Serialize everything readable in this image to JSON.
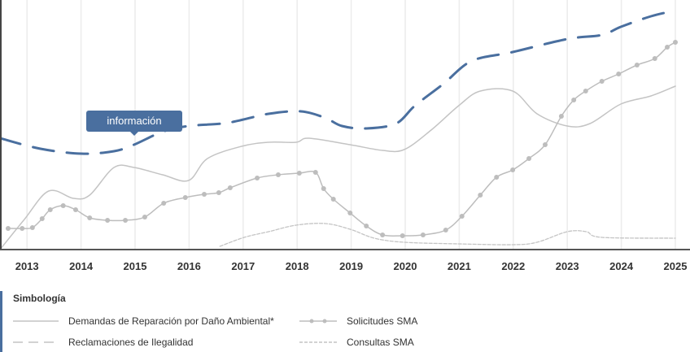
{
  "chart_data": {
    "type": "line",
    "title": "",
    "xlabel": "",
    "ylabel": "",
    "xlim": [
      2012.5,
      2025.25
    ],
    "ylim": [
      0,
      307
    ],
    "grid": "vertical",
    "x_ticks": [
      "2013",
      "2014",
      "2015",
      "2016",
      "2017",
      "2018",
      "2019",
      "2020",
      "2021",
      "2022",
      "2023",
      "2024",
      "2025"
    ],
    "annotation": "información",
    "legend_title": "Simbología",
    "series": [
      {
        "name": "Reclamaciones de Ilegalidad",
        "style": "long-dash",
        "color": "#4a6f9f",
        "x": [
          2012.5,
          2013.25,
          2014.01,
          2014.61,
          2014.98,
          2015.51,
          2015.99,
          2016.72,
          2017.47,
          2018.07,
          2018.52,
          2018.83,
          2019.28,
          2019.83,
          2020.18,
          2020.71,
          2021.23,
          2021.99,
          2023.0,
          2023.64,
          2023.99,
          2024.55,
          2025.0
        ],
        "y": [
          137,
          124,
          118,
          121,
          129,
          145,
          152,
          156,
          167,
          170,
          162,
          152,
          149,
          155,
          177,
          204,
          232,
          243,
          259,
          264,
          274,
          287,
          294
        ]
      },
      {
        "name": "Demandas de Reparación por Daño Ambiental*",
        "style": "solid",
        "color": "#c4c4c4",
        "x": [
          2012.5,
          2012.95,
          2013.4,
          2013.86,
          2014.16,
          2014.61,
          2014.98,
          2015.51,
          2015.99,
          2016.34,
          2016.97,
          2017.47,
          2017.98,
          2018.22,
          2018.98,
          2019.58,
          2019.98,
          2020.48,
          2020.99,
          2021.39,
          2021.99,
          2022.44,
          2023.0,
          2023.42,
          2023.99,
          2024.55,
          2025.0
        ],
        "y": [
          0,
          37,
          72,
          63,
          67,
          101,
          101,
          92,
          85,
          112,
          127,
          132,
          132,
          137,
          129,
          122,
          123,
          147,
          177,
          195,
          195,
          167,
          152,
          155,
          179,
          189,
          201
        ]
      },
      {
        "name": "Solicitudes SMA",
        "style": "dots",
        "color": "#bdbdbd",
        "x": [
          2012.65,
          2012.91,
          2013.1,
          2013.28,
          2013.43,
          2013.67,
          2013.9,
          2014.16,
          2014.49,
          2014.82,
          2015.18,
          2015.53,
          2015.93,
          2016.28,
          2016.55,
          2016.76,
          2017.26,
          2017.65,
          2018.04,
          2018.34,
          2018.49,
          2018.67,
          2018.98,
          2019.28,
          2019.58,
          2019.95,
          2020.33,
          2020.75,
          2021.05,
          2021.39,
          2021.69,
          2021.99,
          2022.29,
          2022.59,
          2022.89,
          2023.12,
          2023.34,
          2023.64,
          2023.95,
          2024.29,
          2024.62,
          2024.85,
          2025.0
        ],
        "y": [
          26,
          26,
          27,
          38,
          49,
          54,
          49,
          39,
          36,
          36,
          40,
          57,
          64,
          68,
          70,
          76,
          88,
          92,
          94,
          95,
          75,
          62,
          45,
          29,
          18,
          17,
          18,
          24,
          41,
          67,
          89,
          98,
          112,
          129,
          164,
          184,
          195,
          207,
          216,
          227,
          235,
          249,
          255
        ]
      },
      {
        "name": "Consultas SMA",
        "style": "short-dash",
        "color": "#c4c4c4",
        "x": [
          2016.57,
          2017.02,
          2017.47,
          2017.98,
          2018.52,
          2018.98,
          2019.43,
          2019.98,
          2020.99,
          2021.99,
          2022.44,
          2023.0,
          2023.35,
          2023.64,
          2025.0
        ],
        "y": [
          4,
          15,
          22,
          30,
          32,
          25,
          14,
          9,
          7,
          6,
          9,
          22,
          22,
          15,
          14
        ]
      }
    ]
  }
}
